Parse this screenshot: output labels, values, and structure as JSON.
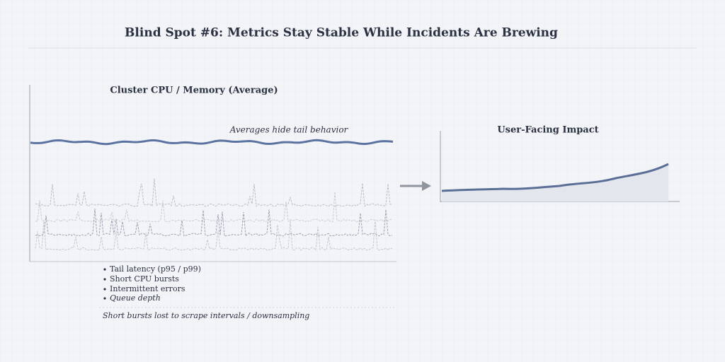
{
  "title": "Blind Spot #6: Metrics Stay Stable While Incidents Are Brewing",
  "left_panel": {
    "title": "Cluster CPU / Memory (Average)",
    "annotation": "Averages hide tail behavior",
    "bullets": [
      "Tail latency (p95 / p99)",
      "Short CPU bursts",
      "Intermittent errors",
      "Queue depth"
    ],
    "footnote": "Short bursts lost to scrape intervals / downsampling"
  },
  "right_panel": {
    "title": "User-Facing Impact"
  }
}
